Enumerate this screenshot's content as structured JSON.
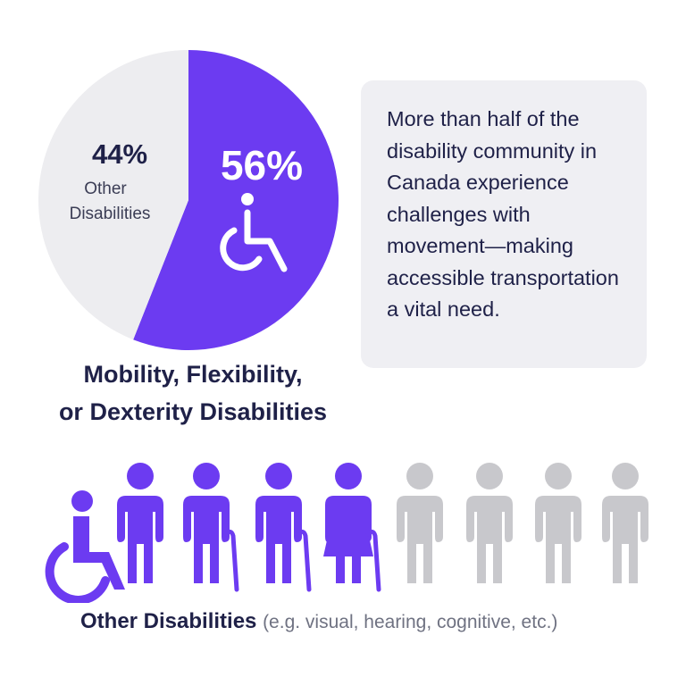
{
  "chart_data": {
    "type": "pie",
    "slices": [
      {
        "label": "Mobility, Flexibility, or Dexterity Disabilities",
        "value": 56,
        "display": "56%",
        "color": "#6c3bf1"
      },
      {
        "label": "Other Disabilities",
        "value": 44,
        "display": "44%",
        "color": "#ededf0"
      }
    ]
  },
  "pie": {
    "major_pct": "56%",
    "minor_pct": "44%",
    "minor_label_line1": "Other",
    "minor_label_line2": "Disabilities",
    "major_icon": "wheelchair-icon"
  },
  "pie_caption": {
    "line1": "Mobility, Flexibility,",
    "line2": "or Dexterity Disabilities"
  },
  "callout": {
    "text": "More than half of the disability community in Canada experience challenges with movement—making accessible transportation a vital need."
  },
  "people_row": {
    "figures": [
      {
        "icon": "wheelchair-user-icon",
        "color": "#6c3bf1"
      },
      {
        "icon": "person-icon",
        "color": "#6c3bf1"
      },
      {
        "icon": "person-with-cane-icon",
        "color": "#6c3bf1"
      },
      {
        "icon": "person-with-cane-icon",
        "color": "#6c3bf1"
      },
      {
        "icon": "woman-with-cane-icon",
        "color": "#6c3bf1"
      },
      {
        "icon": "person-icon",
        "color": "#c8c8cc"
      },
      {
        "icon": "person-icon",
        "color": "#c8c8cc"
      },
      {
        "icon": "person-icon",
        "color": "#c8c8cc"
      },
      {
        "icon": "person-icon",
        "color": "#c8c8cc"
      }
    ]
  },
  "bottom_caption": {
    "strong": "Other Disabilities",
    "muted": "(e.g. visual, hearing, cognitive, etc.)"
  },
  "colors": {
    "accent": "#6c3bf1",
    "navy": "#1f2148",
    "gray": "#ededf0",
    "muted_figure": "#c8c8cc"
  }
}
